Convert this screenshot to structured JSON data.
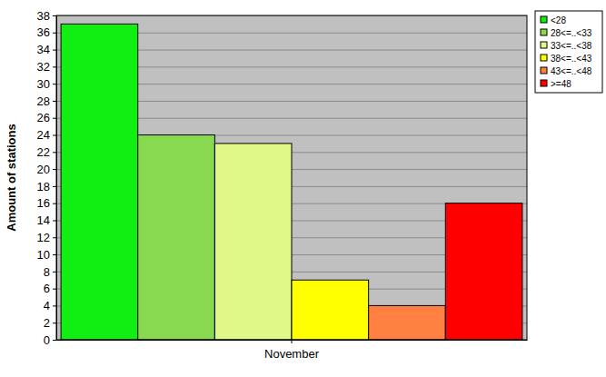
{
  "chart_data": {
    "type": "bar",
    "y_label": "Amount of stations",
    "categories": [
      "November"
    ],
    "series": [
      {
        "name": "<28",
        "color": "#11ee11",
        "values": [
          37
        ]
      },
      {
        "name": "28<=..<33",
        "color": "#88d850",
        "values": [
          24
        ]
      },
      {
        "name": "33<=..<38",
        "color": "#e0f888",
        "values": [
          23
        ]
      },
      {
        "name": "38<=..<43",
        "color": "#ffff00",
        "values": [
          7
        ]
      },
      {
        "name": "43<=..<48",
        "color": "#ff8040",
        "values": [
          4
        ]
      },
      {
        "name": ">=48",
        "color": "#ff0000",
        "values": [
          16
        ]
      }
    ],
    "ylim": [
      0,
      38
    ],
    "yticks": [
      0,
      2,
      4,
      6,
      8,
      10,
      12,
      14,
      16,
      18,
      20,
      22,
      24,
      26,
      28,
      30,
      32,
      34,
      36,
      38
    ],
    "grid": true,
    "legend": "top-right"
  }
}
